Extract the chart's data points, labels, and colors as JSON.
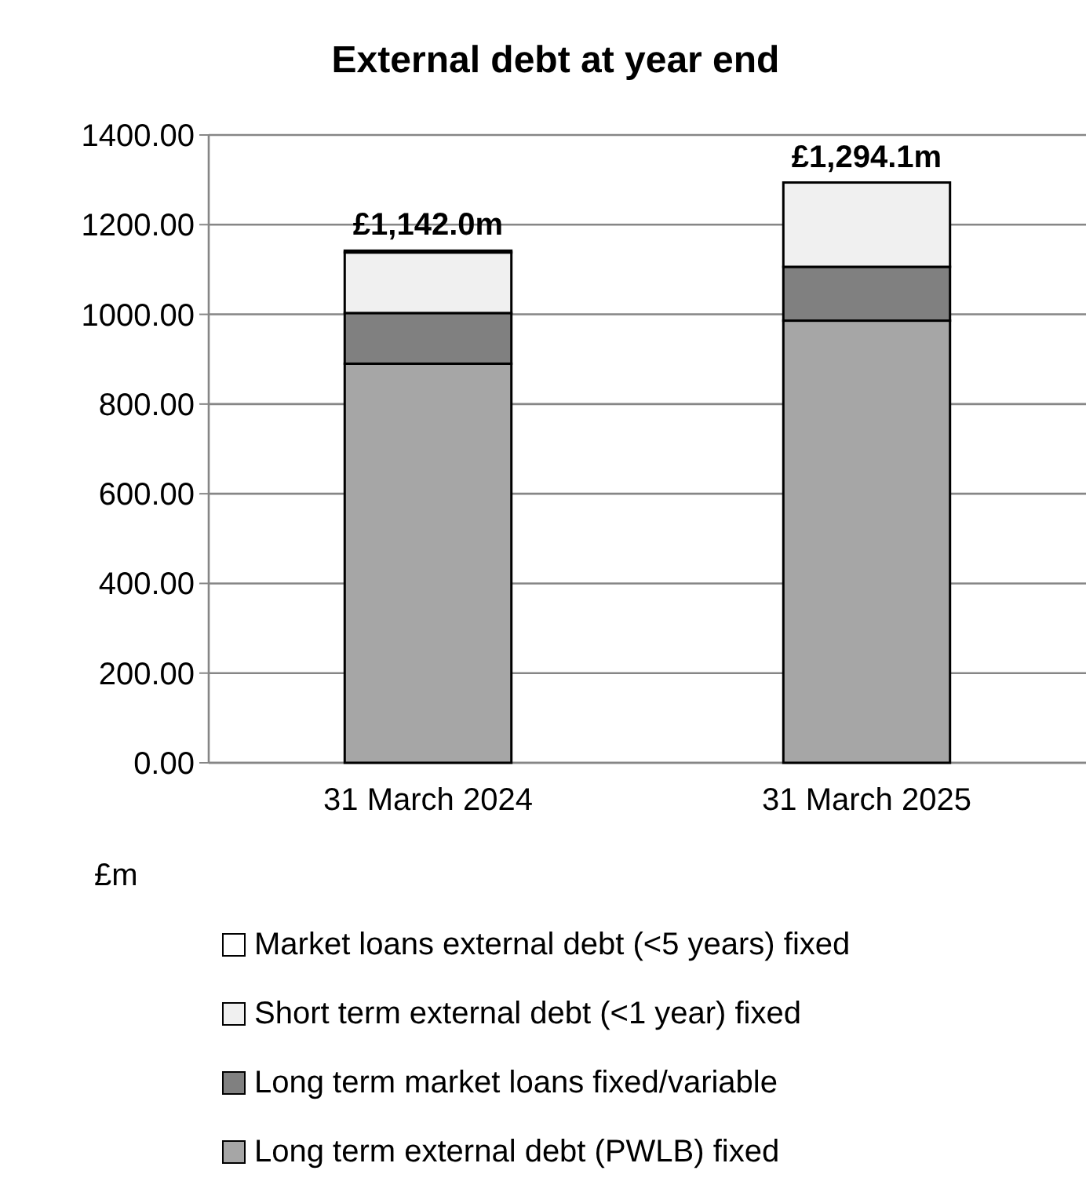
{
  "chart_data": {
    "type": "bar",
    "title": "External debt at year end",
    "ylabel": "£m",
    "stacked": true,
    "categories": [
      "31 March 2024",
      "31 March 2025"
    ],
    "series": [
      {
        "name": "Long term external debt (PWLB) fixed",
        "color": "#a6a6a6",
        "values": [
          890,
          986
        ]
      },
      {
        "name": "Long term market loans fixed/variable",
        "color": "#808080",
        "values": [
          113,
          120
        ]
      },
      {
        "name": "Short term external debt (<1 year) fixed",
        "color": "#f0f0f0",
        "values": [
          135,
          188
        ]
      },
      {
        "name": "Market loans external debt (<5 years) fixed",
        "color": "#ffffff",
        "values": [
          4,
          0
        ]
      }
    ],
    "totals": [
      "£1,142.0m",
      "£1,294.1m"
    ],
    "ylim": [
      0,
      1400
    ],
    "yticks": [
      {
        "value": 0,
        "label": "0.00"
      },
      {
        "value": 200,
        "label": "200.00"
      },
      {
        "value": 400,
        "label": "400.00"
      },
      {
        "value": 600,
        "label": "600.00"
      },
      {
        "value": 800,
        "label": "800.00"
      },
      {
        "value": 1000,
        "label": "1000.00"
      },
      {
        "value": 1200,
        "label": "1200.00"
      },
      {
        "value": 1400,
        "label": "1400.00"
      }
    ],
    "grid": "y",
    "legend": "bottom"
  }
}
